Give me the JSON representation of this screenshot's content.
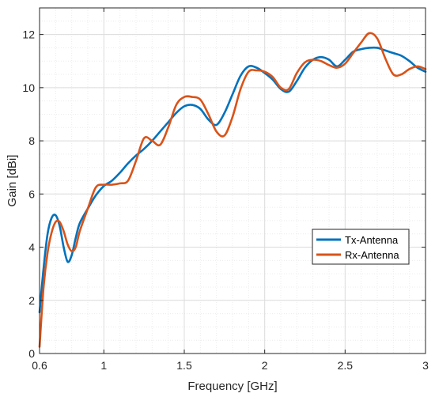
{
  "chart_data": {
    "type": "line",
    "title": "",
    "xlabel": "Frequency [GHz]",
    "ylabel": "Gain [dBi]",
    "xlim": [
      0.6,
      3.0
    ],
    "ylim": [
      0,
      13
    ],
    "xticks": [
      0.6,
      1.0,
      1.5,
      2.0,
      2.5,
      3.0
    ],
    "xtick_labels": [
      "0.6",
      "1",
      "1.5",
      "2",
      "2.5",
      "3"
    ],
    "yticks": [
      0,
      2,
      4,
      6,
      8,
      10,
      12
    ],
    "ytick_labels": [
      "0",
      "2",
      "4",
      "6",
      "8",
      "10",
      "12"
    ],
    "grid": true,
    "minor_grid": true,
    "legend_position": "right-center",
    "series": [
      {
        "name": "Tx-Antenna",
        "color": "#0072BD",
        "x": [
          0.6,
          0.625,
          0.65,
          0.675,
          0.7,
          0.725,
          0.75,
          0.775,
          0.8,
          0.825,
          0.85,
          0.9,
          0.95,
          1.0,
          1.05,
          1.1,
          1.15,
          1.2,
          1.25,
          1.3,
          1.35,
          1.4,
          1.45,
          1.5,
          1.55,
          1.6,
          1.65,
          1.7,
          1.75,
          1.8,
          1.85,
          1.9,
          1.95,
          2.0,
          2.05,
          2.1,
          2.15,
          2.2,
          2.25,
          2.3,
          2.35,
          2.4,
          2.45,
          2.5,
          2.55,
          2.6,
          2.65,
          2.7,
          2.75,
          2.8,
          2.85,
          2.9,
          2.95,
          3.0
        ],
        "y": [
          1.55,
          3.2,
          4.5,
          5.1,
          5.2,
          4.8,
          4.0,
          3.45,
          3.7,
          4.35,
          4.9,
          5.45,
          5.95,
          6.3,
          6.5,
          6.8,
          7.15,
          7.45,
          7.7,
          8.0,
          8.35,
          8.7,
          9.05,
          9.3,
          9.35,
          9.2,
          8.8,
          8.6,
          9.05,
          9.75,
          10.45,
          10.8,
          10.75,
          10.55,
          10.3,
          9.95,
          9.85,
          10.25,
          10.75,
          11.05,
          11.15,
          11.05,
          10.8,
          11.05,
          11.35,
          11.45,
          11.5,
          11.5,
          11.4,
          11.3,
          11.2,
          11.0,
          10.75,
          10.6
        ]
      },
      {
        "name": "Rx-Antenna",
        "color": "#D95319",
        "x": [
          0.6,
          0.625,
          0.65,
          0.675,
          0.7,
          0.725,
          0.75,
          0.775,
          0.8,
          0.825,
          0.85,
          0.9,
          0.95,
          1.0,
          1.05,
          1.1,
          1.15,
          1.2,
          1.25,
          1.3,
          1.35,
          1.4,
          1.45,
          1.5,
          1.55,
          1.6,
          1.65,
          1.7,
          1.75,
          1.8,
          1.85,
          1.9,
          1.95,
          2.0,
          2.05,
          2.1,
          2.15,
          2.2,
          2.25,
          2.3,
          2.35,
          2.4,
          2.45,
          2.5,
          2.55,
          2.6,
          2.65,
          2.7,
          2.75,
          2.8,
          2.85,
          2.9,
          2.95,
          3.0
        ],
        "y": [
          0.25,
          2.5,
          3.8,
          4.55,
          4.95,
          4.95,
          4.6,
          4.1,
          3.85,
          4.0,
          4.6,
          5.45,
          6.25,
          6.35,
          6.35,
          6.4,
          6.5,
          7.25,
          8.1,
          8.0,
          7.85,
          8.5,
          9.35,
          9.65,
          9.65,
          9.55,
          9.0,
          8.35,
          8.2,
          8.9,
          9.95,
          10.6,
          10.65,
          10.6,
          10.4,
          10.0,
          9.95,
          10.55,
          10.95,
          11.05,
          11.0,
          10.85,
          10.75,
          10.9,
          11.3,
          11.7,
          12.05,
          11.85,
          11.1,
          10.5,
          10.5,
          10.7,
          10.8,
          10.7
        ]
      }
    ]
  }
}
